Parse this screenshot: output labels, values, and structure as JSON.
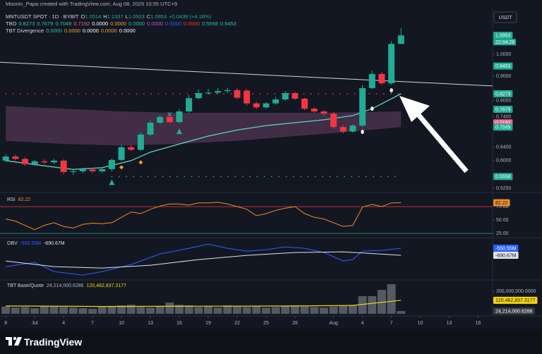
{
  "header": {
    "credit": "Moonin_Papa created with TradingView.com, Aug 08, 2025 10:55 UTC+9",
    "symbol": "MNTUSDT SPOT · 1D · BYBIT",
    "ohlc": [
      [
        "O",
        "1.0514"
      ],
      [
        "H",
        "1.1337"
      ],
      [
        "L",
        "1.0503"
      ],
      [
        "C",
        "1.0953"
      ]
    ],
    "change": "+0.0439 (+4.18%)",
    "indicators": [
      {
        "name": "TBO",
        "values": [
          "0.8273",
          "0.7679",
          "0.7049",
          "0.7192",
          "0.0000",
          "0.0000",
          "0.0000",
          "0.0000",
          "0.0000",
          "0.0000",
          "0.5558",
          "0.9453"
        ],
        "colors": [
          "#26c6a6",
          "#26c6a6",
          "#26c6a6",
          "#f06292",
          "#ffffff",
          "#f0a030",
          "#26c6a6",
          "#c050e0",
          "#2962ff",
          "#f23645",
          "#26c6a6",
          "#26c6a6"
        ]
      },
      {
        "name": "TBT Divergence",
        "values": [
          "0.0000",
          "0.0000",
          "0.0000",
          "0.0000",
          "0.0000"
        ],
        "colors": [
          "#26c6a6",
          "#f0a030",
          "#ffffff",
          "#f0a030",
          "#ffffff"
        ]
      }
    ],
    "currency": "USDT"
  },
  "footer": {
    "brand": "TradingView"
  },
  "chart_data": [
    {
      "type": "candlestick",
      "log_scale": true,
      "up_color": "#22ab94",
      "down_color": "#f23645",
      "x": [
        0,
        1,
        2,
        3,
        4,
        5,
        6,
        7,
        8,
        9,
        10,
        11,
        12,
        13,
        14,
        15,
        16,
        17,
        18,
        19,
        20,
        21,
        22,
        23,
        24,
        25,
        26,
        27,
        28,
        29,
        30,
        31,
        32,
        33,
        34,
        35,
        36,
        37,
        38,
        39,
        40,
        41
      ],
      "open": [
        0.6,
        0.612,
        0.605,
        0.59,
        0.598,
        0.595,
        0.6,
        0.568,
        0.57,
        0.575,
        0.57,
        0.576,
        0.602,
        0.64,
        0.632,
        0.68,
        0.72,
        0.74,
        0.722,
        0.76,
        0.81,
        0.83,
        0.832,
        0.838,
        0.842,
        0.84,
        0.79,
        0.775,
        0.79,
        0.805,
        0.83,
        0.808,
        0.77,
        0.76,
        0.752,
        0.705,
        0.69,
        0.71,
        0.85,
        0.91,
        0.87,
        1.0514
      ],
      "high": [
        0.618,
        0.618,
        0.61,
        0.602,
        0.604,
        0.605,
        0.604,
        0.575,
        0.58,
        0.58,
        0.58,
        0.606,
        0.648,
        0.648,
        0.686,
        0.728,
        0.748,
        0.748,
        0.768,
        0.822,
        0.845,
        0.846,
        0.85,
        0.852,
        0.85,
        0.846,
        0.795,
        0.795,
        0.815,
        0.838,
        0.835,
        0.812,
        0.775,
        0.765,
        0.758,
        0.712,
        0.715,
        0.862,
        0.925,
        0.918,
        1.065,
        1.1337
      ],
      "low": [
        0.596,
        0.6,
        0.585,
        0.586,
        0.59,
        0.59,
        0.562,
        0.56,
        0.565,
        0.565,
        0.566,
        0.57,
        0.598,
        0.628,
        0.628,
        0.675,
        0.715,
        0.718,
        0.718,
        0.755,
        0.805,
        0.824,
        0.826,
        0.83,
        0.806,
        0.782,
        0.768,
        0.77,
        0.785,
        0.8,
        0.802,
        0.765,
        0.755,
        0.745,
        0.7,
        0.684,
        0.686,
        0.705,
        0.845,
        0.862,
        0.865,
        1.0503
      ],
      "close": [
        0.612,
        0.605,
        0.59,
        0.598,
        0.595,
        0.6,
        0.568,
        0.57,
        0.575,
        0.57,
        0.576,
        0.602,
        0.64,
        0.632,
        0.68,
        0.72,
        0.74,
        0.722,
        0.76,
        0.81,
        0.83,
        0.832,
        0.838,
        0.842,
        0.812,
        0.79,
        0.775,
        0.79,
        0.805,
        0.83,
        0.808,
        0.77,
        0.76,
        0.752,
        0.705,
        0.69,
        0.71,
        0.85,
        0.91,
        0.87,
        1.0514,
        1.0953
      ],
      "xlim": [
        -0.6,
        50.5
      ],
      "ylim": [
        0.52,
        1.234
      ],
      "yticks": [
        {
          "value": 1.0,
          "label": "1.0000"
        },
        {
          "value": 0.9,
          "label": "0.9000"
        },
        {
          "value": 0.8,
          "label": "0.8000"
        },
        {
          "value": 0.74,
          "label": "0.7400"
        },
        {
          "value": 0.7,
          "label": "0.7000"
        },
        {
          "value": 0.64,
          "label": "0.6400"
        },
        {
          "value": 0.6,
          "label": "0.6000"
        },
        {
          "value": 0.525,
          "label": "0.5250"
        }
      ],
      "band": {
        "x": [
          0,
          6,
          12,
          18,
          24,
          30,
          36,
          41
        ],
        "upper": [
          0.78,
          0.77,
          0.76,
          0.755,
          0.755,
          0.755,
          0.757,
          0.76
        ],
        "lower": [
          0.66,
          0.65,
          0.645,
          0.65,
          0.66,
          0.675,
          0.69,
          0.7049
        ],
        "color": "#7a4a70"
      },
      "ma": {
        "x": [
          0,
          4,
          7,
          10,
          13,
          15,
          18,
          21,
          24,
          27,
          30,
          33,
          36,
          38,
          41
        ],
        "values": [
          0.6,
          0.585,
          0.575,
          0.58,
          0.6,
          0.625,
          0.65,
          0.675,
          0.695,
          0.71,
          0.72,
          0.73,
          0.745,
          0.77,
          0.8273
        ],
        "color": "#5ed3b8"
      },
      "trend": {
        "x": [
          -0.6,
          50.5
        ],
        "values": [
          0.963,
          0.859
        ],
        "color": "#d1d4dc"
      },
      "levels": [
        {
          "value": 0.8273,
          "x": [
            0,
            41
          ],
          "color": "#f23645"
        },
        {
          "value": 0.5558,
          "x": [
            11,
            41
          ],
          "color": "#22ab94"
        }
      ],
      "signals": [
        {
          "shape": "triangle-up",
          "color": "#22ab94",
          "x": [
            11,
            18
          ],
          "values": [
            0.541,
            0.691
          ]
        },
        {
          "shape": "diamond",
          "color": "#f0a030",
          "x": [
            12,
            14
          ],
          "values": [
            0.581,
            0.595
          ]
        },
        {
          "shape": "cross",
          "color": "#22ab94",
          "x": [
            17
          ],
          "values": [
            0.75
          ]
        },
        {
          "shape": "drop",
          "color": "#ffffff",
          "x": [
            37,
            38,
            40
          ],
          "values": [
            0.689,
            0.77,
            0.841
          ]
        }
      ],
      "badges": {
        "values": [
          1.0953,
          0.9453,
          0.8273,
          0.7679,
          0.7192,
          0.7049,
          0.5558
        ],
        "colors": [
          "#22ab94",
          "#22ab94",
          "#22ab94",
          "#22ab94",
          "#f06292",
          "#22ab94",
          "#22ab94"
        ]
      },
      "countdown": "22:04:26"
    },
    {
      "type": "line",
      "title": "RSI",
      "color": "#e8912a",
      "x": [
        0,
        1,
        2,
        3,
        4,
        5,
        6,
        7,
        8,
        9,
        10,
        11,
        12,
        13,
        14,
        15,
        16,
        17,
        18,
        19,
        20,
        21,
        22,
        23,
        24,
        25,
        26,
        27,
        28,
        29,
        30,
        31,
        32,
        33,
        34,
        35,
        36,
        37,
        38,
        39,
        40,
        41
      ],
      "values": [
        52,
        48,
        40,
        32,
        40,
        45,
        38,
        35,
        42,
        44,
        43,
        45,
        55,
        65,
        62,
        70,
        76,
        80,
        80,
        78,
        82,
        82,
        83,
        80,
        75,
        70,
        58,
        62,
        68,
        72,
        75,
        62,
        55,
        52,
        45,
        38,
        40,
        74,
        79,
        75,
        82,
        82.22
      ],
      "xlim": [
        -0.6,
        50.5
      ],
      "ylim": [
        19.7,
        94.7
      ],
      "yticks": [
        {
          "value": 75,
          "label": "75.00"
        },
        {
          "value": 50,
          "label": "50.00"
        },
        {
          "value": 25,
          "label": "25.00"
        }
      ],
      "levels": [
        {
          "value": 75,
          "color": "#f23645"
        },
        {
          "value": 25,
          "color": "#22ab94"
        }
      ]
    },
    {
      "type": "line",
      "title": "OBV",
      "xlim": [
        -0.6,
        50.5
      ],
      "ylim": [
        -1152,
        -382
      ],
      "yticks": [],
      "series": [
        {
          "color": "#2962ff",
          "x": [
            0,
            3,
            5,
            8,
            10,
            13,
            16,
            19,
            21,
            23,
            25,
            27,
            29,
            31,
            33,
            35,
            36,
            37,
            39,
            41
          ],
          "values": [
            -915,
            -831,
            -1013,
            -1083,
            -1013,
            -873,
            -663,
            -551,
            -467,
            -551,
            -607,
            -579,
            -523,
            -551,
            -635,
            -803,
            -775,
            -607,
            -593,
            -550.55
          ],
          "value_labels": [
            null,
            null,
            null,
            null,
            null,
            null,
            null,
            null,
            null,
            null,
            null,
            null,
            null,
            null,
            null,
            null,
            null,
            null,
            null,
            "-550.55M"
          ]
        },
        {
          "color": "#e0e3eb",
          "x": [
            0,
            5,
            10,
            15,
            20,
            25,
            30,
            35,
            41
          ],
          "values": [
            -803,
            -915,
            -943,
            -887,
            -775,
            -691,
            -635,
            -621,
            -690.67
          ],
          "value_labels": [
            null,
            null,
            null,
            null,
            null,
            null,
            null,
            null,
            "-690.67M"
          ]
        }
      ]
    },
    {
      "type": "bar",
      "title": "TBT Base/Quote",
      "color": "#5d606b",
      "x": [
        0,
        1,
        2,
        3,
        4,
        5,
        6,
        7,
        8,
        9,
        10,
        11,
        12,
        13,
        14,
        15,
        16,
        17,
        18,
        19,
        20,
        21,
        22,
        23,
        24,
        25,
        26,
        27,
        28,
        29,
        30,
        31,
        32,
        33,
        34,
        35,
        36,
        37,
        38,
        39,
        40,
        41
      ],
      "values": [
        65000000,
        55000000,
        60000000,
        50000000,
        70000000,
        65000000,
        60000000,
        55000000,
        50000000,
        45000000,
        60000000,
        70000000,
        75000000,
        80000000,
        60000000,
        55000000,
        65000000,
        100000000,
        80000000,
        75000000,
        60000000,
        70000000,
        55000000,
        75000000,
        65000000,
        60000000,
        70000000,
        55000000,
        60000000,
        70000000,
        75000000,
        65000000,
        60000000,
        55000000,
        65000000,
        70000000,
        80000000,
        157000000,
        157000000,
        213000000,
        264000000,
        24214000.6286
      ],
      "value_labels": [
        null,
        null,
        null,
        null,
        null,
        null,
        null,
        null,
        null,
        null,
        null,
        null,
        null,
        null,
        null,
        null,
        null,
        null,
        null,
        null,
        null,
        null,
        null,
        null,
        null,
        null,
        null,
        null,
        null,
        null,
        null,
        null,
        null,
        null,
        null,
        null,
        null,
        null,
        null,
        null,
        null,
        "24,214,000.6286"
      ],
      "series": [
        {
          "color": "#f5d40f",
          "x": [
            0,
            10,
            20,
            30,
            36,
            41
          ],
          "values": [
            70000000,
            65000000,
            68000000,
            70000000,
            75000000,
            120462837.3177
          ],
          "value_labels": [
            null,
            null,
            null,
            null,
            null,
            "120,462,837.3177"
          ]
        }
      ],
      "xlim": [
        -0.6,
        50.5
      ],
      "ylim": [
        0,
        282600000
      ],
      "yticks": [
        {
          "value": 200000000,
          "label": "200,000,000.0000"
        }
      ],
      "xticks": [
        {
          "value": 0,
          "label": "8"
        },
        {
          "value": 3,
          "label": "Jul"
        },
        {
          "value": 6,
          "label": "4"
        },
        {
          "value": 9,
          "label": "7"
        },
        {
          "value": 12,
          "label": "10"
        },
        {
          "value": 15,
          "label": "13"
        },
        {
          "value": 18,
          "label": "16"
        },
        {
          "value": 21,
          "label": "19"
        },
        {
          "value": 24,
          "label": "22"
        },
        {
          "value": 27,
          "label": "25"
        },
        {
          "value": 30,
          "label": "28"
        },
        {
          "value": 34,
          "label": "Aug"
        },
        {
          "value": 37,
          "label": "4"
        },
        {
          "value": 40,
          "label": "7"
        },
        {
          "value": 43,
          "label": "10"
        },
        {
          "value": 46,
          "label": "13"
        },
        {
          "value": 49,
          "label": "16"
        }
      ]
    }
  ]
}
